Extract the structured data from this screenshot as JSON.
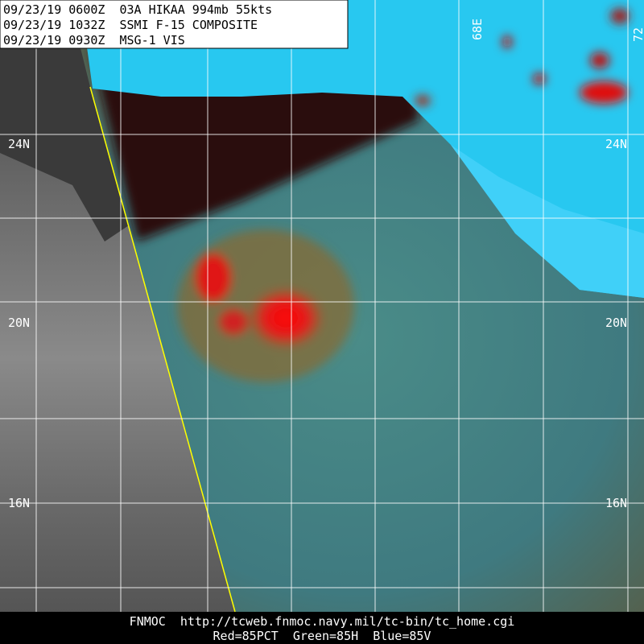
{
  "header": {
    "lines": [
      "09/23/19 0600Z  03A HIKAA 994mb 55kts",
      "09/23/19 1032Z  SSMI F-15 COMPOSITE",
      "09/23/19 0930Z  MSG-1 VIS"
    ]
  },
  "latitude_labels": [
    "24N",
    "20N",
    "16N"
  ],
  "longitude_labels": [
    "68E",
    "72"
  ],
  "footer": {
    "lines": [
      "FNMOC  http://tcweb.fnmoc.navy.mil/tc-bin/tc_home.cgi",
      "Red=85PCT  Green=85H  Blue=85V"
    ]
  }
}
